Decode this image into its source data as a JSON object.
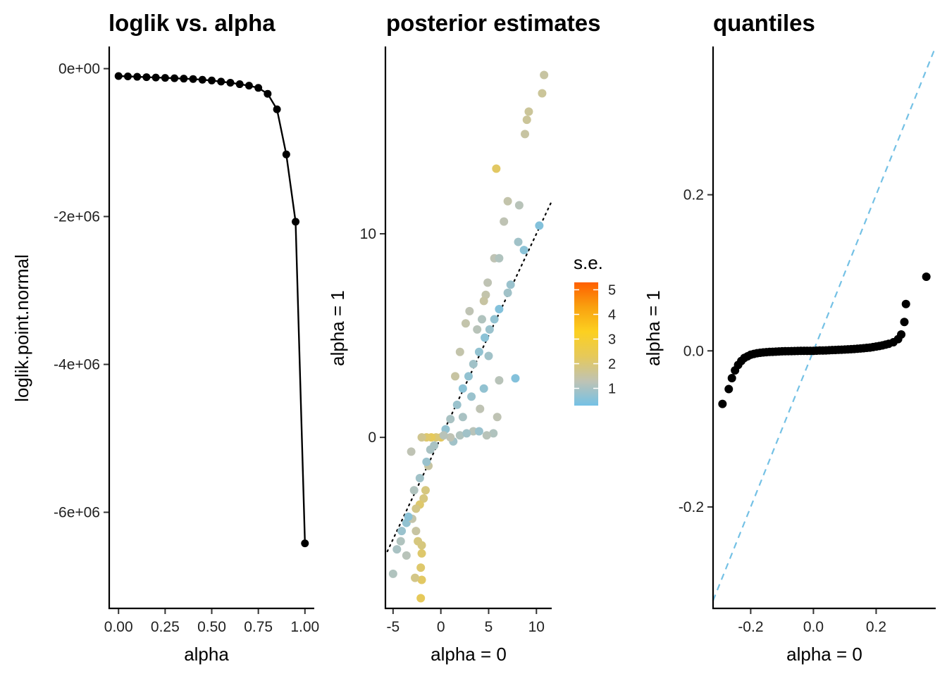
{
  "colors": {
    "points": "#000000",
    "qq_reference_line": "#74C1E5",
    "identity_line": "#000000",
    "se_gradient": [
      "#74C1E5",
      "#BFC3B4",
      "#E6C95A",
      "#FCD020",
      "#F9A10F",
      "#FF5F00"
    ]
  },
  "chart_data": [
    {
      "type": "line",
      "title": "loglik vs. alpha",
      "xlabel": "alpha",
      "ylabel": "loglik.point.normal",
      "xlim": [
        -0.05,
        1.05
      ],
      "ylim": [
        -7300000,
        300000
      ],
      "xticks": [
        0,
        0.25,
        0.5,
        0.75,
        1.0
      ],
      "xtick_labels": [
        "0.00",
        "0.25",
        "0.50",
        "0.75",
        "1.00"
      ],
      "yticks": [
        0,
        -2000000,
        -4000000,
        -6000000
      ],
      "ytick_labels": [
        "0e+00",
        "-2e+06",
        "-4e+06",
        "-6e+06"
      ],
      "grid": false,
      "x": [
        0.0,
        0.05,
        0.1,
        0.15,
        0.2,
        0.25,
        0.3,
        0.35,
        0.4,
        0.45,
        0.5,
        0.55,
        0.6,
        0.65,
        0.7,
        0.75,
        0.8,
        0.85,
        0.9,
        0.95,
        1.0
      ],
      "y": [
        -100000,
        -105000,
        -110000,
        -115000,
        -120000,
        -125000,
        -130000,
        -135000,
        -140000,
        -150000,
        -160000,
        -175000,
        -190000,
        -210000,
        -230000,
        -260000,
        -340000,
        -550000,
        -1160000,
        -2070000,
        -6420000
      ]
    },
    {
      "type": "scatter",
      "title": "posterior estimates",
      "xlabel": "alpha = 0",
      "ylabel": "alpha = 1",
      "xlim": [
        -5.8,
        11.6
      ],
      "ylim": [
        -8.4,
        19.2
      ],
      "xticks": [
        -5,
        0,
        5,
        10
      ],
      "xtick_labels": [
        "-5",
        "0",
        "5",
        "10"
      ],
      "yticks": [
        0,
        10
      ],
      "ytick_labels": [
        "0",
        "10"
      ],
      "grid": false,
      "reference_line": "y = x (dotted)",
      "legend": {
        "title": "s.e.",
        "position": "right",
        "min": 0.3,
        "max": 5.3,
        "ticks": [
          1,
          2,
          3,
          4,
          5
        ],
        "tick_labels": [
          "1",
          "2",
          "3",
          "4",
          "5"
        ]
      },
      "points": [
        [
          10.8,
          17.8,
          1.5
        ],
        [
          10.6,
          16.9,
          1.6
        ],
        [
          9.2,
          16.0,
          1.6
        ],
        [
          9.0,
          15.6,
          1.6
        ],
        [
          8.8,
          14.9,
          1.5
        ],
        [
          5.8,
          13.2,
          2.2
        ],
        [
          7.0,
          11.6,
          1.4
        ],
        [
          8.2,
          11.4,
          1.2
        ],
        [
          6.6,
          10.6,
          1.3
        ],
        [
          10.3,
          10.4,
          0.5
        ],
        [
          8.1,
          9.6,
          0.9
        ],
        [
          8.7,
          9.2,
          0.6
        ],
        [
          5.6,
          8.8,
          1.3
        ],
        [
          6.1,
          8.8,
          1.1
        ],
        [
          7.3,
          7.5,
          0.8
        ],
        [
          4.9,
          7.6,
          1.3
        ],
        [
          7.0,
          7.1,
          0.9
        ],
        [
          4.7,
          7.0,
          1.4
        ],
        [
          4.5,
          6.7,
          1.5
        ],
        [
          7.8,
          2.9,
          0.5
        ],
        [
          6.1,
          2.8,
          1.2
        ],
        [
          5.9,
          1.0,
          1.3
        ],
        [
          4.1,
          1.4,
          1.3
        ],
        [
          5.5,
          0.2,
          1.1
        ],
        [
          3.4,
          0.3,
          1.2
        ],
        [
          0.0,
          0.0,
          2.2
        ],
        [
          -0.5,
          0.0,
          2.0
        ],
        [
          -1.0,
          0.0,
          2.3
        ],
        [
          -1.5,
          0.0,
          2.1
        ],
        [
          -2.0,
          0.0,
          1.7
        ],
        [
          -1.1,
          -0.6,
          1.0
        ],
        [
          -1.3,
          -1.4,
          1.5
        ],
        [
          -3.1,
          -0.7,
          1.3
        ],
        [
          -1.6,
          -2.6,
          1.9
        ],
        [
          -1.8,
          -3.0,
          1.9
        ],
        [
          -2.2,
          -3.3,
          2.1
        ],
        [
          -2.6,
          -3.5,
          1.8
        ],
        [
          -3.6,
          -4.2,
          0.7
        ],
        [
          -4.1,
          -4.6,
          0.8
        ],
        [
          -2.6,
          -4.6,
          1.5
        ],
        [
          -2.4,
          -5.1,
          1.9
        ],
        [
          -2.0,
          -5.3,
          1.9
        ],
        [
          -2.0,
          -5.7,
          2.1
        ],
        [
          -3.6,
          -5.8,
          1.2
        ],
        [
          -4.2,
          -5.1,
          1.1
        ],
        [
          -4.6,
          -5.5,
          1.0
        ],
        [
          -2.1,
          -6.4,
          2.1
        ],
        [
          -2.0,
          -7.0,
          2.2
        ],
        [
          -2.7,
          -6.9,
          1.8
        ],
        [
          -5.0,
          -6.7,
          1.1
        ],
        [
          -2.1,
          -7.9,
          2.3
        ],
        [
          -3.0,
          -4.0,
          1.4
        ],
        [
          -3.4,
          -3.9,
          0.6
        ],
        [
          -2.8,
          -2.6,
          1.1
        ],
        [
          -2.2,
          -2.0,
          0.9
        ],
        [
          -1.5,
          -1.2,
          0.8
        ],
        [
          -0.7,
          -0.4,
          1.0
        ],
        [
          0.5,
          0.4,
          0.7
        ],
        [
          1.0,
          0.9,
          1.0
        ],
        [
          1.7,
          1.6,
          0.8
        ],
        [
          2.3,
          2.4,
          0.6
        ],
        [
          2.9,
          3.0,
          0.7
        ],
        [
          3.4,
          3.6,
          0.9
        ],
        [
          4.0,
          4.2,
          0.7
        ],
        [
          4.6,
          4.9,
          0.6
        ],
        [
          5.1,
          5.3,
          0.8
        ],
        [
          5.6,
          5.8,
          0.7
        ],
        [
          6.1,
          6.3,
          0.5
        ],
        [
          2.6,
          5.6,
          1.4
        ],
        [
          3.0,
          6.2,
          1.3
        ],
        [
          2.0,
          4.2,
          1.4
        ],
        [
          1.5,
          3.0,
          1.5
        ],
        [
          3.8,
          5.3,
          1.2
        ],
        [
          4.3,
          5.8,
          1.1
        ],
        [
          5.0,
          4.0,
          0.9
        ],
        [
          3.2,
          2.0,
          0.8
        ],
        [
          2.3,
          1.0,
          1.0
        ],
        [
          4.5,
          2.4,
          0.7
        ],
        [
          1.3,
          -0.2,
          0.9
        ],
        [
          2.0,
          0.1,
          1.1
        ],
        [
          2.7,
          0.2,
          0.9
        ],
        [
          4.0,
          0.3,
          0.8
        ],
        [
          4.8,
          0.1,
          1.2
        ],
        [
          1.0,
          0.0,
          1.3
        ],
        [
          0.3,
          0.1,
          1.2
        ]
      ]
    },
    {
      "type": "scatter",
      "title": "quantiles",
      "xlabel": "alpha = 0",
      "ylabel": "alpha = 1",
      "xlim": [
        -0.32,
        0.39
      ],
      "ylim": [
        -0.33,
        0.39
      ],
      "xticks": [
        -0.2,
        0.0,
        0.2
      ],
      "xtick_labels": [
        "-0.2",
        "0.0",
        "0.2"
      ],
      "yticks": [
        -0.2,
        0.0,
        0.2
      ],
      "ytick_labels": [
        "-0.2",
        "0.0",
        "0.2"
      ],
      "grid": false,
      "reference_line": "y = x (dashed)",
      "points": [
        [
          -0.29,
          -0.068
        ],
        [
          -0.27,
          -0.049
        ],
        [
          -0.26,
          -0.035
        ],
        [
          -0.25,
          -0.025
        ],
        [
          -0.24,
          -0.018
        ],
        [
          -0.23,
          -0.013
        ],
        [
          -0.22,
          -0.009
        ],
        [
          -0.21,
          -0.007
        ],
        [
          -0.2,
          -0.005
        ],
        [
          -0.19,
          -0.004
        ],
        [
          -0.18,
          -0.003
        ],
        [
          -0.17,
          -0.0025
        ],
        [
          -0.16,
          -0.002
        ],
        [
          -0.15,
          -0.0017
        ],
        [
          -0.14,
          -0.0014
        ],
        [
          -0.13,
          -0.0012
        ],
        [
          -0.12,
          -0.001
        ],
        [
          -0.11,
          -0.0008
        ],
        [
          -0.1,
          -0.0006
        ],
        [
          -0.09,
          -0.0005
        ],
        [
          -0.08,
          -0.0004
        ],
        [
          -0.07,
          -0.0003
        ],
        [
          -0.06,
          -0.0002
        ],
        [
          -0.05,
          -0.0001
        ],
        [
          -0.04,
          0.0
        ],
        [
          -0.03,
          0.0
        ],
        [
          -0.02,
          0.0
        ],
        [
          -0.01,
          0.0
        ],
        [
          0.0,
          0.0
        ],
        [
          0.01,
          0.0002
        ],
        [
          0.02,
          0.0004
        ],
        [
          0.03,
          0.0005
        ],
        [
          0.04,
          0.0006
        ],
        [
          0.05,
          0.0008
        ],
        [
          0.06,
          0.001
        ],
        [
          0.07,
          0.0011
        ],
        [
          0.08,
          0.0013
        ],
        [
          0.09,
          0.0015
        ],
        [
          0.1,
          0.0017
        ],
        [
          0.11,
          0.0019
        ],
        [
          0.12,
          0.0021
        ],
        [
          0.13,
          0.0024
        ],
        [
          0.14,
          0.0027
        ],
        [
          0.15,
          0.003
        ],
        [
          0.16,
          0.0034
        ],
        [
          0.17,
          0.0038
        ],
        [
          0.18,
          0.0042
        ],
        [
          0.19,
          0.0048
        ],
        [
          0.2,
          0.0055
        ],
        [
          0.21,
          0.0062
        ],
        [
          0.22,
          0.007
        ],
        [
          0.23,
          0.008
        ],
        [
          0.24,
          0.009
        ],
        [
          0.255,
          0.011
        ],
        [
          0.27,
          0.015
        ],
        [
          0.28,
          0.021
        ],
        [
          0.29,
          0.037
        ],
        [
          0.295,
          0.06
        ],
        [
          0.36,
          0.095
        ]
      ]
    }
  ]
}
